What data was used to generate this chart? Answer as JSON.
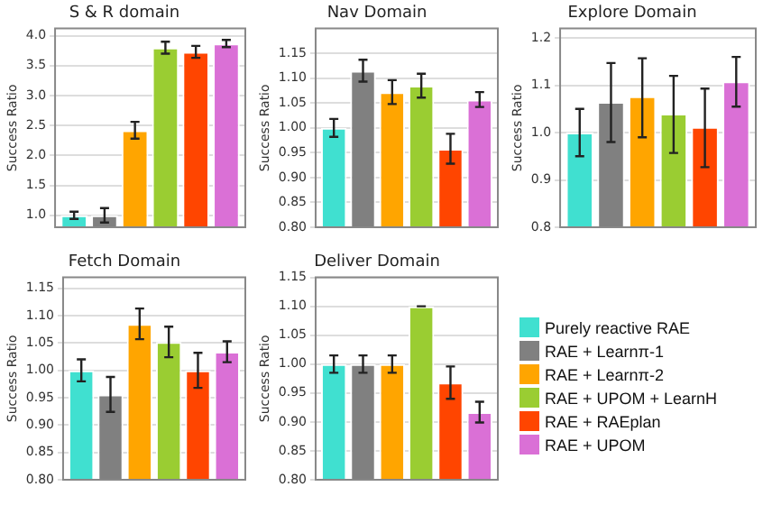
{
  "chart_data": [
    {
      "type": "bar",
      "title": "S & R domain",
      "ylabel": "Success Ratio",
      "categories": [
        null
      ],
      "ylim": [
        0.8,
        4.12
      ],
      "yticks": [
        {
          "value": 1,
          "label": "1.0"
        },
        {
          "value": 1.5,
          "label": "1.5"
        },
        {
          "value": 2,
          "label": "2.0"
        },
        {
          "value": 2.5,
          "label": "2.5"
        },
        {
          "value": 3,
          "label": "3.0"
        },
        {
          "value": 3.5,
          "label": "3.5"
        },
        {
          "value": 4,
          "label": "4.0"
        }
      ],
      "grid": "y",
      "tick_labels": "y",
      "series": [
        {
          "color": "#40e0d0",
          "values": [
            1.0
          ],
          "errors": [
            0.06
          ]
        },
        {
          "color": "#808080",
          "values": [
            1.0
          ],
          "errors": [
            0.12
          ]
        },
        {
          "color": "#ffa500",
          "values": [
            2.42
          ],
          "errors": [
            0.14
          ]
        },
        {
          "color": "#9acd32",
          "values": [
            3.8
          ],
          "errors": [
            0.1
          ]
        },
        {
          "color": "#ff4500",
          "values": [
            3.73
          ],
          "errors": [
            0.1
          ]
        },
        {
          "color": "#da70d6",
          "values": [
            3.87
          ],
          "errors": [
            0.06
          ]
        }
      ]
    },
    {
      "type": "bar",
      "title": "Nav Domain",
      "ylabel": "Success Ratio",
      "categories": [
        null
      ],
      "ylim": [
        0.8,
        1.2
      ],
      "yticks": [
        {
          "value": 0.8,
          "label": "0.80"
        },
        {
          "value": 0.85,
          "label": "0.85"
        },
        {
          "value": 0.9,
          "label": "0.90"
        },
        {
          "value": 0.95,
          "label": "0.95"
        },
        {
          "value": 1,
          "label": "1.00"
        },
        {
          "value": 1.05,
          "label": "1.05"
        },
        {
          "value": 1.1,
          "label": "1.10"
        },
        {
          "value": 1.15,
          "label": "1.15"
        }
      ],
      "grid": "y",
      "tick_labels": "y",
      "series": [
        {
          "color": "#40e0d0",
          "values": [
            1.0
          ],
          "errors": [
            0.018
          ]
        },
        {
          "color": "#808080",
          "values": [
            1.115
          ],
          "errors": [
            0.022
          ]
        },
        {
          "color": "#ffa500",
          "values": [
            1.072
          ],
          "errors": [
            0.024
          ]
        },
        {
          "color": "#9acd32",
          "values": [
            1.085
          ],
          "errors": [
            0.024
          ]
        },
        {
          "color": "#ff4500",
          "values": [
            0.958
          ],
          "errors": [
            0.03
          ]
        },
        {
          "color": "#da70d6",
          "values": [
            1.057
          ],
          "errors": [
            0.015
          ]
        }
      ]
    },
    {
      "type": "bar",
      "title": "Explore Domain",
      "ylabel": "Success Ratio",
      "categories": [
        null
      ],
      "ylim": [
        0.8,
        1.22
      ],
      "yticks": [
        {
          "value": 0.8,
          "label": "0.8"
        },
        {
          "value": 0.9,
          "label": "0.9"
        },
        {
          "value": 1,
          "label": "1.0"
        },
        {
          "value": 1.1,
          "label": "1.1"
        },
        {
          "value": 1.2,
          "label": "1.2"
        }
      ],
      "grid": "y",
      "tick_labels": "y",
      "series": [
        {
          "color": "#40e0d0",
          "values": [
            1.0
          ],
          "errors": [
            0.05
          ]
        },
        {
          "color": "#808080",
          "values": [
            1.065
          ],
          "errors": [
            [
              0.98,
              1.147
            ]
          ]
        },
        {
          "color": "#ffa500",
          "values": [
            1.077
          ],
          "errors": [
            [
              0.99,
              1.157
            ]
          ]
        },
        {
          "color": "#9acd32",
          "values": [
            1.04
          ],
          "errors": [
            [
              0.957,
              1.12
            ]
          ]
        },
        {
          "color": "#ff4500",
          "values": [
            1.012
          ],
          "errors": [
            [
              0.927,
              1.093
            ]
          ]
        },
        {
          "color": "#da70d6",
          "values": [
            1.108
          ],
          "errors": [
            [
              1.055,
              1.16
            ]
          ]
        }
      ]
    },
    {
      "type": "bar",
      "title": "Fetch Domain",
      "ylabel": "Success Ratio",
      "categories": [
        null
      ],
      "ylim": [
        0.8,
        1.17
      ],
      "yticks": [
        {
          "value": 0.8,
          "label": "0.80"
        },
        {
          "value": 0.85,
          "label": "0.85"
        },
        {
          "value": 0.9,
          "label": "0.90"
        },
        {
          "value": 0.95,
          "label": "0.95"
        },
        {
          "value": 1,
          "label": "1.00"
        },
        {
          "value": 1.05,
          "label": "1.05"
        },
        {
          "value": 1.1,
          "label": "1.10"
        },
        {
          "value": 1.15,
          "label": "1.15"
        }
      ],
      "grid": "y",
      "tick_labels": "y",
      "series": [
        {
          "color": "#40e0d0",
          "values": [
            1.0
          ],
          "errors": [
            0.02
          ]
        },
        {
          "color": "#808080",
          "values": [
            0.956
          ],
          "errors": [
            0.032
          ]
        },
        {
          "color": "#ffa500",
          "values": [
            1.085
          ],
          "errors": [
            0.028
          ]
        },
        {
          "color": "#9acd32",
          "values": [
            1.052
          ],
          "errors": [
            0.028
          ]
        },
        {
          "color": "#ff4500",
          "values": [
            1.0
          ],
          "errors": [
            0.032
          ]
        },
        {
          "color": "#da70d6",
          "values": [
            1.034
          ],
          "errors": [
            0.019
          ]
        }
      ]
    },
    {
      "type": "bar",
      "title": "Deliver Domain",
      "ylabel": "Success Ratio",
      "categories": [
        null
      ],
      "ylim": [
        0.8,
        1.15
      ],
      "yticks": [
        {
          "value": 0.8,
          "label": "0.80"
        },
        {
          "value": 0.85,
          "label": "0.85"
        },
        {
          "value": 0.9,
          "label": "0.90"
        },
        {
          "value": 0.95,
          "label": "0.95"
        },
        {
          "value": 1,
          "label": "1.00"
        },
        {
          "value": 1.05,
          "label": "1.05"
        },
        {
          "value": 1.1,
          "label": "1.10"
        },
        {
          "value": 1.15,
          "label": "1.15"
        }
      ],
      "grid": "y",
      "tick_labels": "y",
      "legend": "right",
      "series": [
        {
          "name": "Purely reactive RAE",
          "color": "#40e0d0",
          "values": [
            1.0
          ],
          "errors": [
            0.015
          ]
        },
        {
          "name": "RAE + Learnπ-1",
          "color": "#808080",
          "values": [
            1.0
          ],
          "errors": [
            0.015
          ]
        },
        {
          "name": "RAE + Learnπ-2",
          "color": "#ffa500",
          "values": [
            1.0
          ],
          "errors": [
            0.015
          ]
        },
        {
          "name": "RAE + UPOM + LearnH",
          "color": "#9acd32",
          "values": [
            1.1
          ],
          "errors": [
            0
          ]
        },
        {
          "name": "RAE + RAEplan",
          "color": "#ff4500",
          "values": [
            0.968
          ],
          "errors": [
            0.028
          ]
        },
        {
          "name": "RAE + UPOM",
          "color": "#da70d6",
          "values": [
            0.917
          ],
          "errors": [
            0.018
          ]
        }
      ]
    }
  ]
}
